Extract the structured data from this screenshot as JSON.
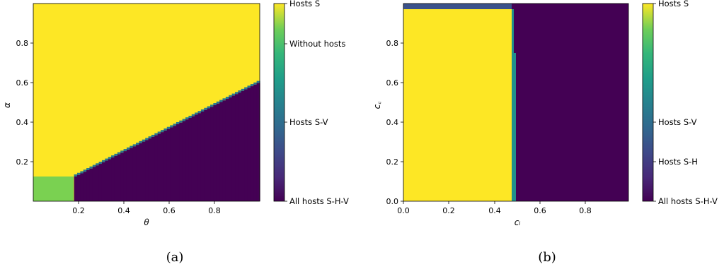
{
  "chart_data": [
    {
      "type": "heatmap",
      "panel_label": "(a)",
      "xlabel": "θ",
      "ylabel": "α",
      "xlim": [
        0,
        1
      ],
      "ylim": [
        0,
        1
      ],
      "xticks": [
        "0.2",
        "0.4",
        "0.6",
        "0.8"
      ],
      "yticks": [
        "0.2",
        "0.4",
        "0.6",
        "0.8"
      ],
      "colorbar": {
        "labels": [
          "Hosts S",
          "Without hosts",
          "Hosts S-V",
          "All hosts S-H-V"
        ],
        "colors": [
          "#fde725",
          "#7ad151",
          "#2a788e",
          "#440154"
        ]
      },
      "regions": [
        {
          "label": "Hosts S",
          "description": "yellow region above boundary line",
          "color": "#fde725"
        },
        {
          "label": "Without hosts",
          "x": [
            0,
            0.18
          ],
          "y": [
            0,
            0.125
          ],
          "color": "#7ad151"
        },
        {
          "label": "All hosts S-H-V",
          "boundary_points": [
            [
              0.18,
              0.125
            ],
            [
              0.99,
              0.6
            ]
          ],
          "color": "#440154"
        },
        {
          "label": "Hosts S-V",
          "description": "thin teal band along the boundary",
          "color": "#2a788e"
        }
      ]
    },
    {
      "type": "heatmap",
      "panel_label": "(b)",
      "xlabel": "cₗ",
      "ylabel": "c꜀",
      "xlim": [
        0,
        1
      ],
      "ylim": [
        0,
        1
      ],
      "xticks": [
        "0.0",
        "0.2",
        "0.4",
        "0.6",
        "0.8"
      ],
      "yticks": [
        "0.0",
        "0.2",
        "0.4",
        "0.6",
        "0.8"
      ],
      "colorbar": {
        "labels": [
          "Hosts S",
          "Hosts S-V",
          "Hosts S-H",
          "All hosts S-H-V"
        ],
        "colors": [
          "#fde725",
          "#21918c",
          "#3b528b",
          "#440154"
        ]
      },
      "regions": [
        {
          "label": "Hosts S",
          "x": [
            0,
            0.47
          ],
          "y": [
            0,
            0.97
          ],
          "color": "#fde725"
        },
        {
          "label": "Hosts S-V",
          "x": [
            0.47,
            0.49
          ],
          "y": [
            0,
            0.75
          ],
          "color": "#21918c"
        },
        {
          "label": "Hosts S-H",
          "x": [
            0,
            0.47
          ],
          "y": [
            0.97,
            1.0
          ],
          "color": "#3b528b"
        },
        {
          "label": "All hosts S-H-V",
          "x": [
            0.47,
            1.0
          ],
          "y": [
            0,
            1.0
          ],
          "color": "#440154"
        }
      ]
    }
  ],
  "captions": [
    "(a)",
    "(b)"
  ]
}
